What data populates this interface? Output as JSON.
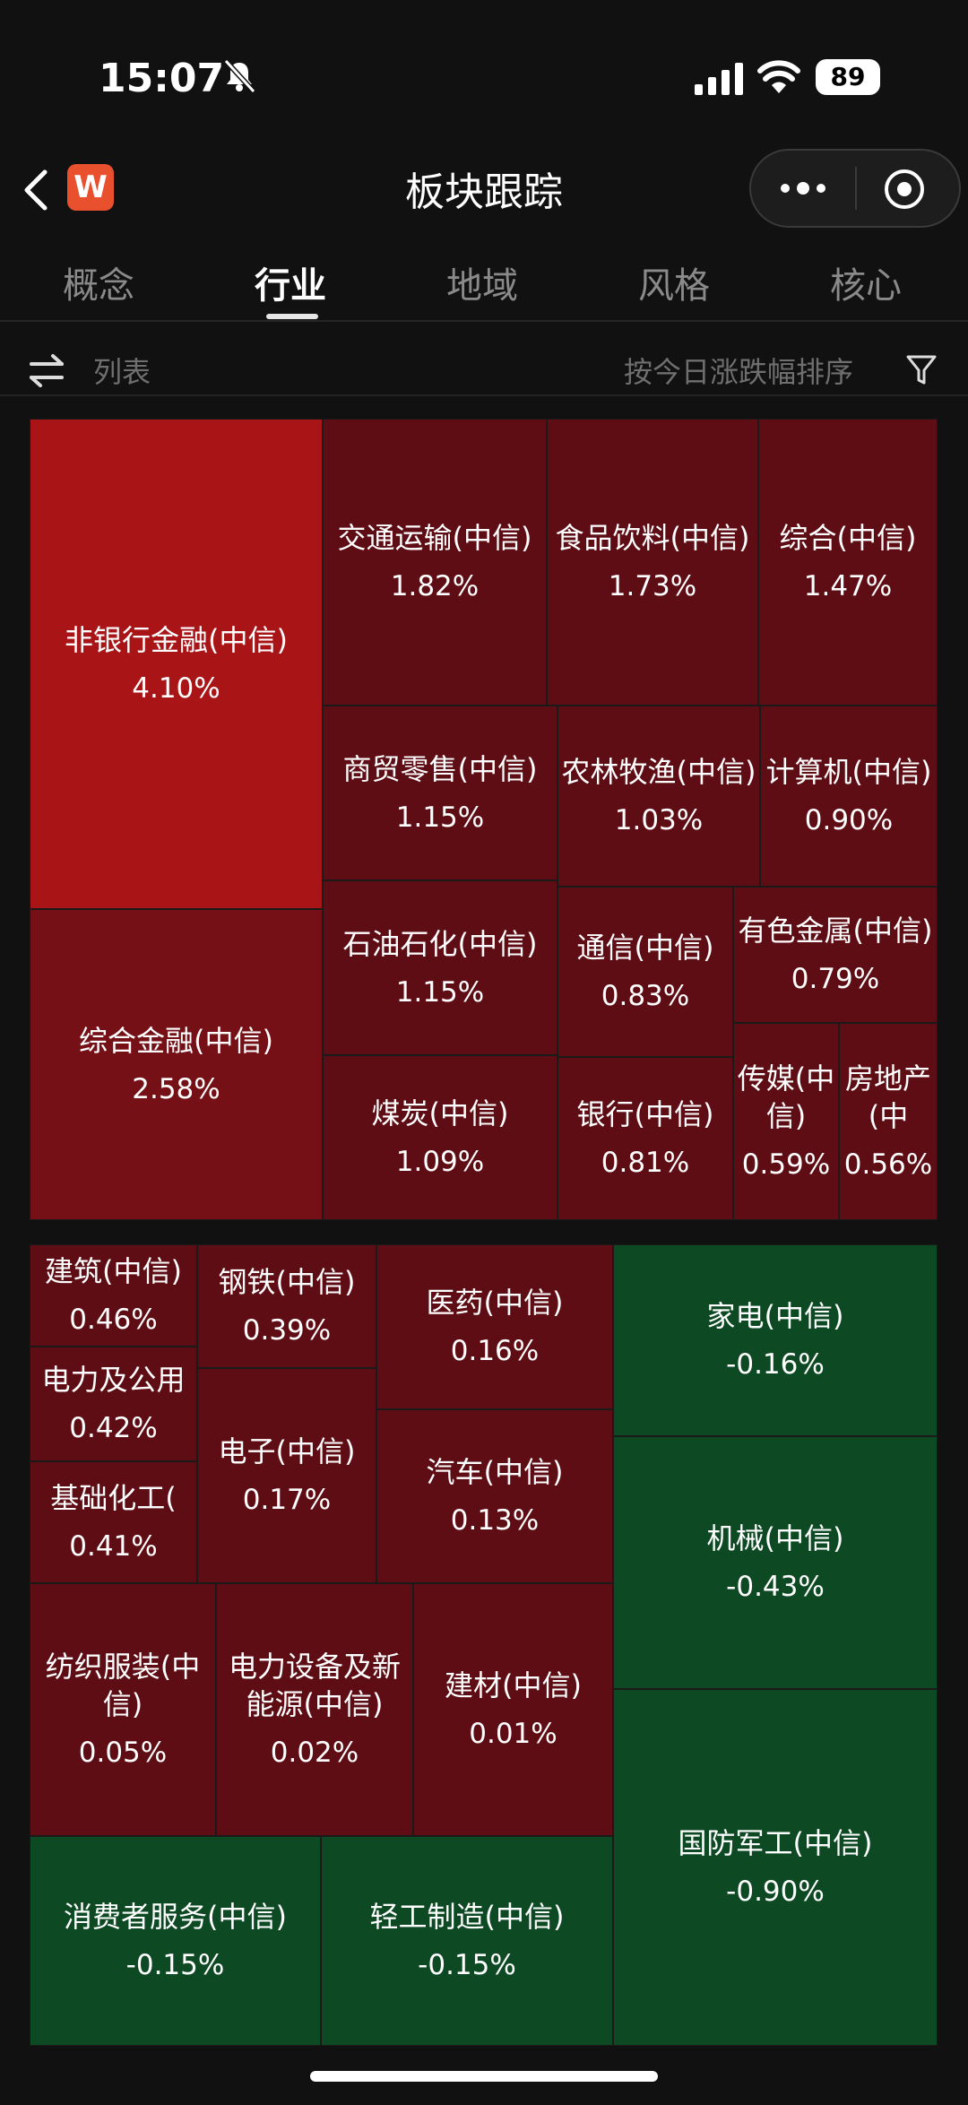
{
  "status_bar": {
    "time": "15:07",
    "battery": "89"
  },
  "nav": {
    "title": "板块跟踪",
    "logo": "W"
  },
  "tabs": [
    {
      "label": "概念",
      "active": false
    },
    {
      "label": "行业",
      "active": true
    },
    {
      "label": "地域",
      "active": false
    },
    {
      "label": "风格",
      "active": false
    },
    {
      "label": "核心",
      "active": false
    }
  ],
  "toolbar": {
    "list_label": "列表",
    "sort_label": "按今日涨跌幅排序"
  },
  "colors": {
    "strong_red": "#a91417",
    "mid_red": "#741016",
    "dark_red": "#5e0d14",
    "green": "#0d4a24"
  },
  "treemap": [
    {
      "name": "非银行金融(中信)",
      "pct": "4.10%"
    },
    {
      "name": "综合金融(中信)",
      "pct": "2.58%"
    },
    {
      "name": "交通运输(中信)",
      "pct": "1.82%"
    },
    {
      "name": "食品饮料(中信)",
      "pct": "1.73%"
    },
    {
      "name": "综合(中信)",
      "pct": "1.47%"
    },
    {
      "name": "商贸零售(中信)",
      "pct": "1.15%"
    },
    {
      "name": "农林牧渔(中信)",
      "pct": "1.03%"
    },
    {
      "name": "计算机(中信)",
      "pct": "0.90%"
    },
    {
      "name": "石油石化(中信)",
      "pct": "1.15%"
    },
    {
      "name": "通信(中信)",
      "pct": "0.83%"
    },
    {
      "name": "有色金属(中信)",
      "pct": "0.79%"
    },
    {
      "name": "煤炭(中信)",
      "pct": "1.09%"
    },
    {
      "name": "银行(中信)",
      "pct": "0.81%"
    },
    {
      "name": "传媒(中信)",
      "pct": "0.59%"
    },
    {
      "name": "房地产(中",
      "pct": "0.56%"
    },
    {
      "name": "建筑(中信)",
      "pct": "0.46%"
    },
    {
      "name": "电力及公用",
      "pct": "0.42%"
    },
    {
      "name": "基础化工(",
      "pct": "0.41%"
    },
    {
      "name": "钢铁(中信)",
      "pct": "0.39%"
    },
    {
      "name": "电子(中信)",
      "pct": "0.17%"
    },
    {
      "name": "医药(中信)",
      "pct": "0.16%"
    },
    {
      "name": "汽车(中信)",
      "pct": "0.13%"
    },
    {
      "name": "纺织服装(中信)",
      "pct": "0.05%"
    },
    {
      "name": "电力设备及新能源(中信)",
      "pct": "0.02%"
    },
    {
      "name": "建材(中信)",
      "pct": "0.01%"
    },
    {
      "name": "家电(中信)",
      "pct": "-0.16%"
    },
    {
      "name": "机械(中信)",
      "pct": "-0.43%"
    },
    {
      "name": "国防军工(中信)",
      "pct": "-0.90%"
    },
    {
      "name": "消费者服务(中信)",
      "pct": "-0.15%"
    },
    {
      "name": "轻工制造(中信)",
      "pct": "-0.15%"
    }
  ]
}
